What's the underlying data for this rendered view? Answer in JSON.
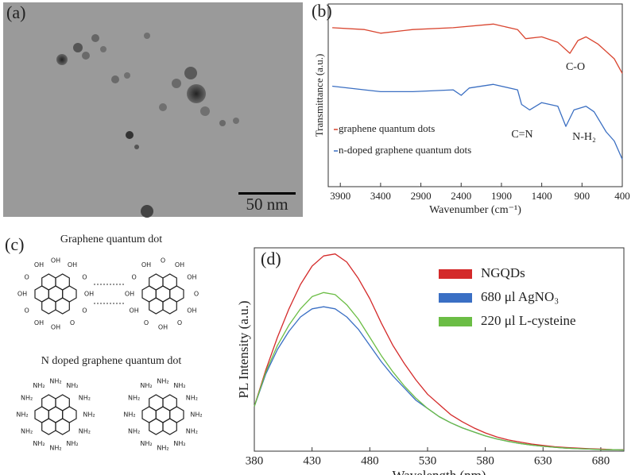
{
  "panels": {
    "a": {
      "label": "(a)",
      "scale_bar": "50 nm"
    },
    "c": {
      "label": "(c)",
      "titles": [
        "Graphene quantum dot",
        "N doped graphene quantum dot"
      ],
      "molecules": [
        {
          "labels": [
            "OH",
            "OH",
            "O",
            "OH",
            "O",
            "O",
            "OH",
            "OH",
            "O",
            "OH",
            "O",
            "OH"
          ]
        },
        {
          "labels": [
            "O",
            "OH",
            "OH",
            "O",
            "OH",
            "O",
            "OH",
            "O",
            "OH",
            "OH",
            "O",
            "OH"
          ]
        },
        {
          "labels": [
            "NH₂",
            "NH₂",
            "NH₂",
            "NH₂",
            "NH₂",
            "NH₂",
            "NH₂",
            "NH₂",
            "NH₂",
            "NH₂",
            "NH₂",
            "NH₂"
          ]
        },
        {
          "labels": [
            "NH₂",
            "NH₂",
            "NH₂",
            "NH₂",
            "NH₂",
            "NH₂",
            "NH₂",
            "NH₂",
            "NH₂",
            "NH₂",
            "NH₂",
            "NH₂"
          ]
        }
      ]
    }
  },
  "chart_data": [
    {
      "type": "line",
      "panel_label": "(b)",
      "ylabel": "Transmittance (a.u.)",
      "xlabel": "Wavenumber (cm⁻¹)",
      "xlim": [
        4050,
        400
      ],
      "ylim": [
        0,
        1
      ],
      "xticks": [
        3900,
        3400,
        2900,
        2400,
        1900,
        1400,
        900,
        400
      ],
      "annotations": [
        "C-O",
        "C=N",
        "N-H₂"
      ],
      "series": [
        {
          "name": "graphene quantum dots",
          "color": "#d9452f",
          "x": [
            4000,
            3600,
            3400,
            3000,
            2500,
            2000,
            1900,
            1700,
            1600,
            1400,
            1200,
            1050,
            950,
            850,
            700,
            500,
            400
          ],
          "values": [
            0.87,
            0.86,
            0.84,
            0.86,
            0.87,
            0.89,
            0.88,
            0.86,
            0.81,
            0.82,
            0.79,
            0.73,
            0.8,
            0.82,
            0.78,
            0.7,
            0.62
          ]
        },
        {
          "name": "n-doped graphene quantum dots",
          "color": "#3b6fc2",
          "x": [
            4000,
            3600,
            3400,
            3000,
            2500,
            2400,
            2300,
            2000,
            1700,
            1650,
            1550,
            1400,
            1200,
            1100,
            1000,
            850,
            750,
            600,
            500,
            400
          ],
          "values": [
            0.55,
            0.53,
            0.52,
            0.52,
            0.53,
            0.5,
            0.54,
            0.56,
            0.53,
            0.45,
            0.42,
            0.46,
            0.44,
            0.33,
            0.42,
            0.44,
            0.41,
            0.3,
            0.25,
            0.15
          ]
        }
      ]
    },
    {
      "type": "line",
      "panel_label": "(d)",
      "ylabel": "PL Intensity (a.u.)",
      "xlabel": "Wavelength (nm)",
      "xlim": [
        380,
        700
      ],
      "ylim": [
        0,
        1
      ],
      "xticks": [
        380,
        430,
        480,
        530,
        580,
        630,
        680
      ],
      "x": [
        380,
        390,
        400,
        410,
        420,
        430,
        440,
        450,
        460,
        470,
        480,
        490,
        500,
        510,
        520,
        530,
        540,
        550,
        560,
        570,
        580,
        590,
        600,
        610,
        620,
        630,
        640,
        650,
        660,
        670,
        680,
        690,
        700
      ],
      "series": [
        {
          "name": "NGQDs",
          "color": "#d42a2a",
          "values": [
            0.22,
            0.4,
            0.56,
            0.7,
            0.82,
            0.91,
            0.96,
            0.97,
            0.93,
            0.85,
            0.75,
            0.63,
            0.52,
            0.43,
            0.35,
            0.28,
            0.23,
            0.18,
            0.145,
            0.115,
            0.09,
            0.07,
            0.055,
            0.045,
            0.035,
            0.028,
            0.022,
            0.018,
            0.015,
            0.012,
            0.01,
            0.008,
            0.007
          ]
        },
        {
          "name": "680 μl AgNO₃",
          "color": "#3a6fc4",
          "values": [
            0.22,
            0.38,
            0.5,
            0.59,
            0.66,
            0.7,
            0.71,
            0.7,
            0.66,
            0.6,
            0.52,
            0.44,
            0.37,
            0.31,
            0.25,
            0.21,
            0.17,
            0.14,
            0.115,
            0.095,
            0.075,
            0.06,
            0.048,
            0.038,
            0.03,
            0.024,
            0.019,
            0.015,
            0.012,
            0.01,
            0.008,
            0.007,
            0.006
          ]
        },
        {
          "name": "220 μl L-cysteine",
          "color": "#6bbd45",
          "values": [
            0.22,
            0.39,
            0.52,
            0.62,
            0.7,
            0.76,
            0.78,
            0.77,
            0.72,
            0.65,
            0.56,
            0.47,
            0.39,
            0.32,
            0.26,
            0.21,
            0.17,
            0.14,
            0.115,
            0.095,
            0.075,
            0.06,
            0.048,
            0.038,
            0.03,
            0.024,
            0.019,
            0.015,
            0.012,
            0.01,
            0.008,
            0.007,
            0.006
          ]
        }
      ]
    }
  ]
}
